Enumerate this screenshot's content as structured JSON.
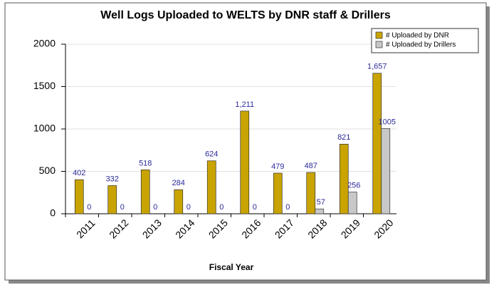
{
  "chart_data": {
    "type": "bar",
    "title": "Well Logs Uploaded to WELTS by DNR staff & Drillers",
    "x_label": "Fiscal Year",
    "categories": [
      "2011",
      "2012",
      "2013",
      "2014",
      "2015",
      "2016",
      "2017",
      "2018",
      "2019",
      "2020"
    ],
    "series": [
      {
        "name": "# Uploaded by DNR",
        "color": "#c9a300",
        "values": [
          402,
          332,
          518,
          284,
          624,
          1211,
          479,
          487,
          821,
          1657
        ],
        "value_labels": [
          "402",
          "332",
          "518",
          "284",
          "624",
          "1,211",
          "479",
          "487",
          "821",
          "1,657"
        ]
      },
      {
        "name": "# Uploaded by Drillers",
        "color": "#c8c8c8",
        "values": [
          0,
          0,
          0,
          0,
          0,
          0,
          0,
          57,
          256,
          1005
        ]
      }
    ],
    "ylim": [
      0,
      2000
    ],
    "yticks": [
      0,
      500,
      1000,
      1500,
      2000
    ],
    "grid": true,
    "legend": "upper right"
  }
}
